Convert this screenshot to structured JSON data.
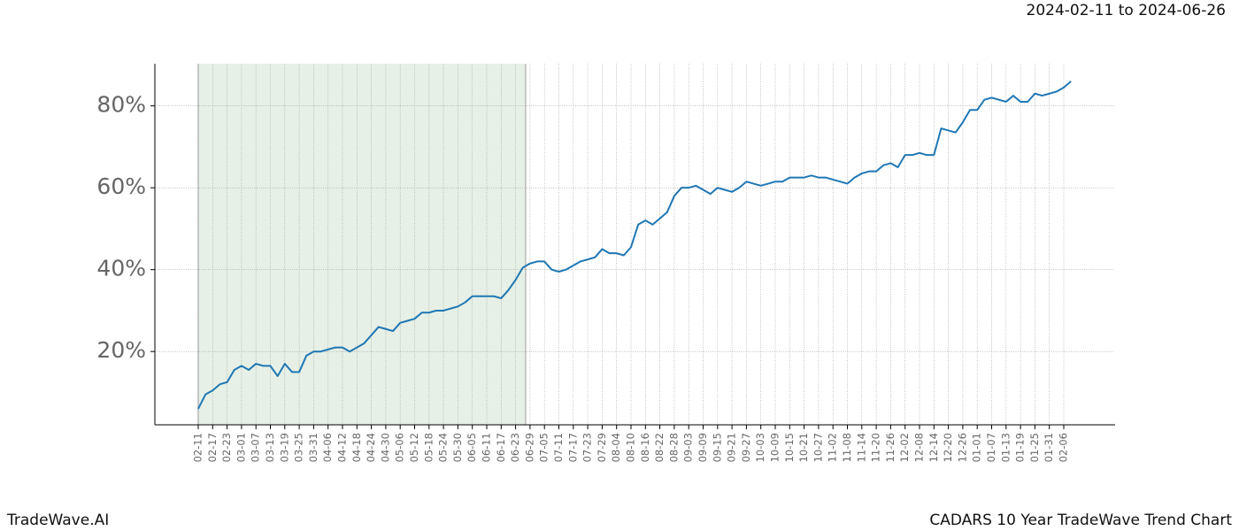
{
  "chart_data": {
    "type": "line",
    "date_range": "2024-02-11 to 2024-06-26",
    "brand": "TradeWave.AI",
    "title": "CADARS 10 Year TradeWave Trend Chart",
    "categories": [
      "02-11",
      null,
      "02-17",
      null,
      "02-23",
      null,
      "03-01",
      null,
      "03-07",
      null,
      "03-13",
      null,
      "03-19",
      null,
      "03-25",
      null,
      "03-31",
      null,
      "04-06",
      null,
      "04-12",
      null,
      "04-18",
      null,
      "04-24",
      null,
      "04-30",
      null,
      "05-06",
      null,
      "05-12",
      null,
      "05-18",
      null,
      "05-24",
      null,
      "05-30",
      null,
      "06-05",
      null,
      "06-11",
      null,
      "06-17",
      null,
      "06-23",
      null,
      "06-29",
      null,
      "07-05",
      null,
      "07-11",
      null,
      "07-17",
      null,
      "07-23",
      null,
      "07-29",
      null,
      "08-04",
      null,
      "08-10",
      null,
      "08-16",
      null,
      "08-22",
      null,
      "08-28",
      null,
      "09-03",
      null,
      "09-09",
      null,
      "09-15",
      null,
      "09-21",
      null,
      "09-27",
      null,
      "10-03",
      null,
      "10-09",
      null,
      "10-15",
      null,
      "10-21",
      null,
      "10-27",
      null,
      "11-02",
      null,
      "11-08",
      null,
      "11-14",
      null,
      "11-20",
      null,
      "11-26",
      null,
      "12-02",
      null,
      "12-08",
      null,
      "12-14",
      null,
      "12-20",
      null,
      "12-26",
      null,
      "01-01",
      null,
      "01-07",
      null,
      "01-13",
      null,
      "01-19",
      null,
      "01-25",
      null,
      "01-31",
      null,
      "02-06",
      null
    ],
    "series": [
      {
        "color": "#1f77b4",
        "values": [
          6,
          9.5,
          10.5,
          12,
          12.5,
          15.5,
          16.5,
          15.5,
          17,
          16.5,
          16.5,
          14,
          17,
          15,
          15,
          19,
          20,
          20,
          20.5,
          21,
          21,
          20,
          21,
          22,
          24,
          26,
          25.5,
          25,
          27,
          27.5,
          28,
          29.5,
          29.5,
          30,
          30,
          30.5,
          31,
          32,
          33.5,
          33.5,
          33.5,
          33.5,
          33,
          35,
          37.5,
          40.5,
          41.5,
          42,
          42,
          40,
          39.5,
          40,
          41,
          42,
          42.5,
          43,
          45,
          44,
          44,
          43.5,
          45.5,
          51,
          52,
          51,
          52.5,
          54,
          58,
          60,
          60,
          60.5,
          59.5,
          58.5,
          60,
          59.5,
          59,
          60,
          61.5,
          61,
          60.5,
          61,
          61.5,
          61.5,
          62.5,
          62.5,
          62.5,
          63,
          62.5,
          62.5,
          62,
          61.5,
          61,
          62.5,
          63.5,
          64,
          64,
          65.5,
          66,
          65,
          68,
          68,
          68.5,
          68,
          68,
          74.5,
          74,
          73.5,
          76,
          79,
          79,
          81.5,
          82,
          81.5,
          81,
          82.5,
          81,
          81,
          83,
          82.5,
          83,
          83.5,
          84.5,
          86
        ]
      }
    ],
    "ylim": [
      2.1,
      90.3
    ],
    "yticks": [
      {
        "value": 20,
        "label": "20%"
      },
      {
        "value": 40,
        "label": "40%"
      },
      {
        "value": 60,
        "label": "60%"
      },
      {
        "value": 80,
        "label": "80%"
      }
    ],
    "highlight_range": [
      "02-11",
      "06-29"
    ],
    "highlight_color": "#e6f0e6",
    "grid": true
  }
}
